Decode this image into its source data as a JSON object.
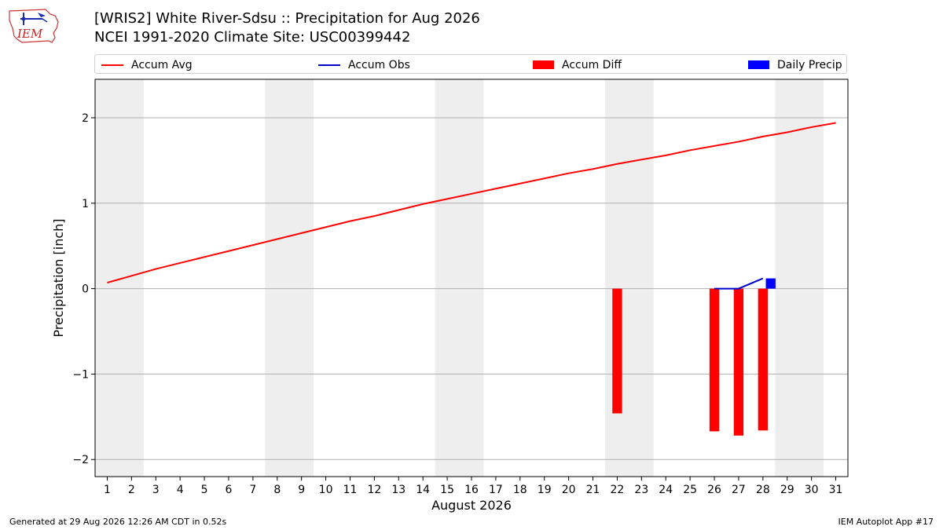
{
  "logo": {
    "text": "IEM"
  },
  "header": {
    "title_line1": "[WRIS2] White River-Sdsu :: Precipitation for Aug 2026",
    "title_line2": "NCEI 1991-2020 Climate Site: USC00399442"
  },
  "footer": {
    "left": "Generated at 29 Aug 2026 12:26 AM CDT in 0.52s",
    "right": "IEM Autoplot App #17"
  },
  "colors": {
    "accum_avg": "#ff0000",
    "accum_obs": "#0000cc",
    "accum_diff": "#ff0000",
    "daily_precip": "#0000ff",
    "weekend_band": "#eeeeee",
    "grid": "#b0b0b0"
  },
  "chart_data": {
    "type": "line",
    "xlabel": "August 2026",
    "ylabel": "Precipitation [inch]",
    "xlim": [
      0.5,
      31.5
    ],
    "ylim": [
      -2.2,
      2.45
    ],
    "x_ticks": [
      1,
      2,
      3,
      4,
      5,
      6,
      7,
      8,
      9,
      10,
      11,
      12,
      13,
      14,
      15,
      16,
      17,
      18,
      19,
      20,
      21,
      22,
      23,
      24,
      25,
      26,
      27,
      28,
      29,
      30,
      31
    ],
    "y_ticks": [
      -2,
      -1,
      0,
      1,
      2
    ],
    "y_tick_labels": [
      "−2",
      "−1",
      "0",
      "1",
      "2"
    ],
    "grid": "horizontal",
    "legend_position": "top",
    "weekend_shading": [
      [
        1,
        2
      ],
      [
        8,
        9
      ],
      [
        15,
        16
      ],
      [
        22,
        23
      ],
      [
        29,
        30
      ]
    ],
    "legend": [
      "Accum Avg",
      "Accum Obs",
      "Accum Diff",
      "Daily Precip"
    ],
    "series": [
      {
        "name": "Accum Avg",
        "kind": "line",
        "x": [
          1,
          2,
          3,
          4,
          5,
          6,
          7,
          8,
          9,
          10,
          11,
          12,
          13,
          14,
          15,
          16,
          17,
          18,
          19,
          20,
          21,
          22,
          23,
          24,
          25,
          26,
          27,
          28,
          29,
          30,
          31
        ],
        "values": [
          0.07,
          0.15,
          0.23,
          0.3,
          0.37,
          0.44,
          0.51,
          0.58,
          0.65,
          0.72,
          0.79,
          0.85,
          0.92,
          0.99,
          1.05,
          1.11,
          1.17,
          1.23,
          1.29,
          1.35,
          1.4,
          1.46,
          1.51,
          1.56,
          1.62,
          1.67,
          1.72,
          1.78,
          1.83,
          1.89,
          1.94
        ]
      },
      {
        "name": "Accum Obs",
        "kind": "line",
        "x": [
          26,
          27,
          28
        ],
        "values": [
          0.0,
          0.0,
          0.12
        ]
      },
      {
        "name": "Accum Diff",
        "kind": "bar",
        "x": [
          22,
          26,
          27,
          28
        ],
        "values": [
          -1.46,
          -1.67,
          -1.72,
          -1.66
        ]
      },
      {
        "name": "Daily Precip",
        "kind": "bar",
        "x": [
          28
        ],
        "values": [
          0.12
        ]
      }
    ]
  }
}
